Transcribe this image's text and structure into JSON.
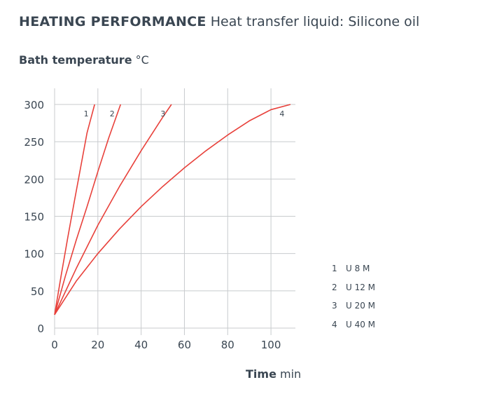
{
  "title": {
    "bold": "HEATING PERFORMANCE",
    "rest": "Heat transfer liquid: Silicone oil"
  },
  "colors": {
    "line": "#e8413b",
    "grid": "#c8cbce",
    "text": "#3a4652"
  },
  "chart_data": {
    "type": "line",
    "title": "HEATING PERFORMANCE Heat transfer liquid: Silicone oil",
    "xlabel_bold": "Time",
    "xlabel_unit": "min",
    "ylabel_bold": "Bath temperature",
    "ylabel_unit": "°C",
    "xlim": [
      0,
      110
    ],
    "ylim": [
      0,
      300
    ],
    "xticks": [
      0,
      20,
      40,
      60,
      80,
      100
    ],
    "yticks": [
      0,
      50,
      100,
      150,
      200,
      250,
      300
    ],
    "grid": true,
    "series": [
      {
        "name": "U 8 M",
        "label": "1",
        "x": [
          0,
          3,
          6,
          9,
          12,
          15,
          18.5
        ],
        "y": [
          18,
          70,
          120,
          168,
          215,
          262,
          300
        ]
      },
      {
        "name": "U 12 M",
        "label": "2",
        "x": [
          0,
          5,
          10,
          15,
          20,
          25,
          30.5
        ],
        "y": [
          18,
          70,
          118,
          163,
          210,
          255,
          300
        ]
      },
      {
        "name": "U 20 M",
        "label": "3",
        "x": [
          0,
          10,
          20,
          30,
          40,
          50,
          54
        ],
        "y": [
          18,
          80,
          138,
          190,
          238,
          283,
          300
        ]
      },
      {
        "name": "U 40 M",
        "label": "4",
        "x": [
          0,
          10,
          20,
          30,
          40,
          50,
          60,
          70,
          80,
          90,
          100,
          109
        ],
        "y": [
          18,
          63,
          100,
          133,
          163,
          190,
          215,
          238,
          259,
          278,
          293,
          300
        ]
      }
    ]
  },
  "legend": [
    {
      "num": "1",
      "label": "U 8 M"
    },
    {
      "num": "2",
      "label": "U 12 M"
    },
    {
      "num": "3",
      "label": "U 20 M"
    },
    {
      "num": "4",
      "label": "U 40 M"
    }
  ]
}
